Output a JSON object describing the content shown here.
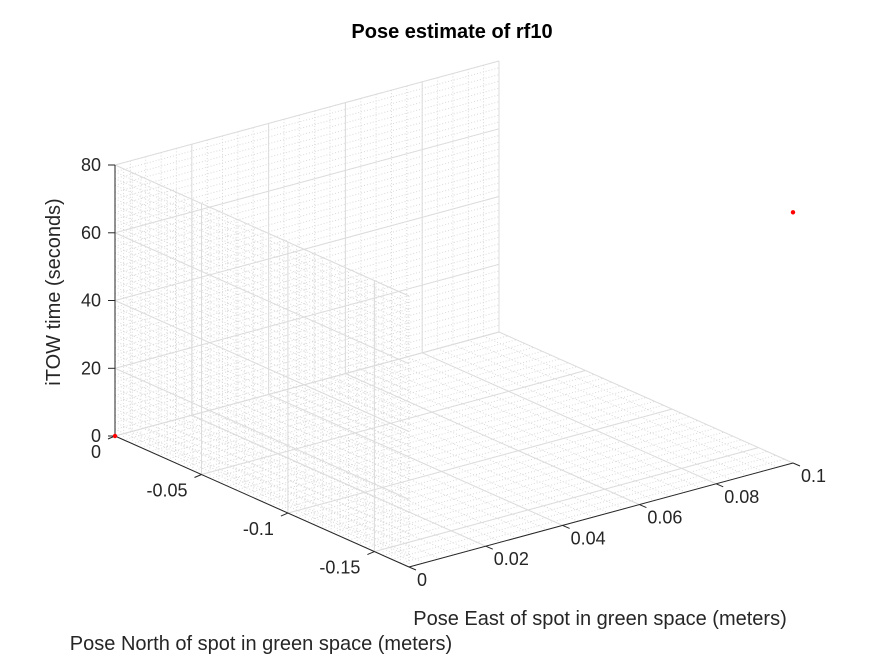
{
  "chart_data": {
    "type": "scatter",
    "title": "Pose estimate of rf10",
    "xlabel": "Pose East of spot in green space (meters)",
    "ylabel": "Pose North of spot in green space (meters)",
    "zlabel": "iTOW time (seconds)",
    "xlim": [
      0,
      0.1
    ],
    "ylim": [
      -0.17,
      0
    ],
    "zlim": [
      0,
      80
    ],
    "x_ticks": [
      0,
      0.02,
      0.04,
      0.06,
      0.08,
      0.1
    ],
    "x_tick_labels": [
      "0",
      "0.02",
      "0.04",
      "0.06",
      "0.08",
      "0.1"
    ],
    "y_ticks": [
      0,
      -0.05,
      -0.1,
      -0.15
    ],
    "y_tick_labels": [
      "0",
      "-0.05",
      "-0.1",
      "-0.15"
    ],
    "z_ticks": [
      0,
      20,
      40,
      60,
      80
    ],
    "z_tick_labels": [
      "0",
      "20",
      "40",
      "60",
      "80"
    ],
    "grid": true,
    "minor_grid": true,
    "marker_color": "#ff0000",
    "points": [
      {
        "x": 0,
        "y": 0,
        "z": 0
      },
      {
        "x": 0.1,
        "y": -0.17,
        "z": 74
      }
    ]
  }
}
